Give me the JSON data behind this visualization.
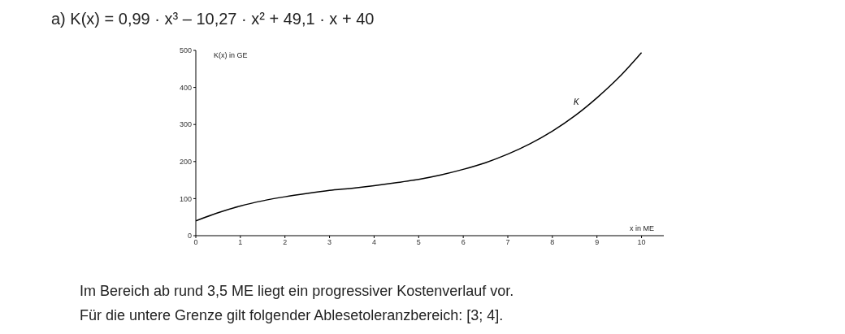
{
  "chart_data": {
    "type": "line",
    "title": "a)  K(x) = 0,99 · x³ – 10,27 · x² + 49,1 · x + 40",
    "xlabel": "x in ME",
    "ylabel": "K(x) in GE",
    "x": [
      0,
      0.5,
      1,
      1.5,
      2,
      2.5,
      3,
      3.5,
      4,
      4.5,
      5,
      5.5,
      6,
      6.5,
      7,
      7.5,
      8,
      8.5,
      9,
      9.5,
      10
    ],
    "series": [
      {
        "name": "K",
        "color": "#000000",
        "values": [
          40,
          62,
          80,
          94,
          105,
          114,
          122,
          128,
          135,
          143,
          152,
          164,
          179,
          197,
          220,
          248,
          282,
          323,
          372,
          428,
          494
        ]
      }
    ],
    "xlim": [
      0,
      10.5
    ],
    "xticks": [
      0,
      1,
      2,
      3,
      4,
      5,
      6,
      7,
      8,
      9,
      10
    ],
    "ylim": [
      0,
      500
    ],
    "yticks": [
      0,
      100,
      200,
      300,
      400,
      500
    ],
    "grid": false,
    "legend": false,
    "annotations": [
      "Im Bereich ab rund 3,5 ME liegt ein progressiver Kostenverlauf vor.",
      "Für die untere Grenze gilt folgender Ablesetoleranzbereich: [3; 4]."
    ]
  }
}
